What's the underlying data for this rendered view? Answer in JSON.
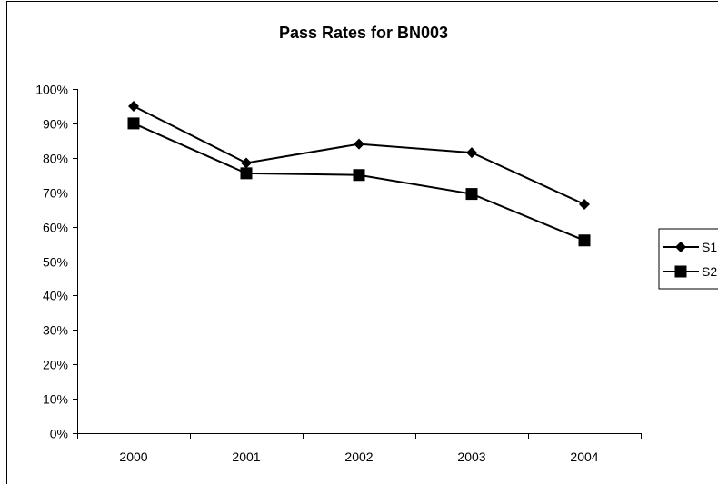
{
  "chart_data": {
    "type": "line",
    "title": "Pass Rates for BN003",
    "xlabel": "",
    "ylabel": "",
    "categories": [
      "2000",
      "2001",
      "2002",
      "2003",
      "2004"
    ],
    "y_ticks": [
      "0%",
      "10%",
      "20%",
      "30%",
      "40%",
      "50%",
      "60%",
      "70%",
      "80%",
      "90%",
      "100%"
    ],
    "ylim": [
      0,
      1
    ],
    "grid": false,
    "legend_position": "right",
    "series": [
      {
        "name": "S1",
        "marker": "diamond",
        "color": "#000000",
        "values": [
          0.95,
          0.785,
          0.84,
          0.815,
          0.665
        ]
      },
      {
        "name": "S2",
        "marker": "square",
        "color": "#000000",
        "values": [
          0.9,
          0.755,
          0.75,
          0.695,
          0.56
        ]
      }
    ]
  }
}
